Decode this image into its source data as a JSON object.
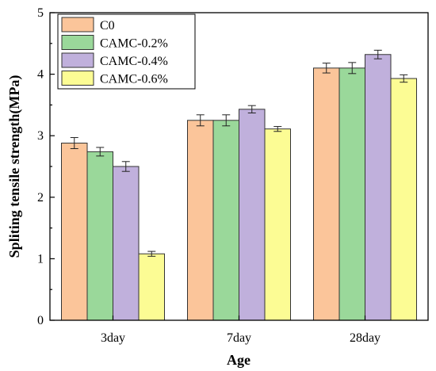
{
  "chart_data": {
    "type": "bar",
    "categories": [
      "3day",
      "7day",
      "28day"
    ],
    "series": [
      {
        "name": "C0",
        "values": [
          2.88,
          3.25,
          4.1
        ],
        "errors": [
          0.09,
          0.09,
          0.08
        ],
        "color": "#fbc59a"
      },
      {
        "name": "CAMC-0.2%",
        "values": [
          2.74,
          3.25,
          4.1
        ],
        "errors": [
          0.07,
          0.09,
          0.09
        ],
        "color": "#9ad89a"
      },
      {
        "name": "CAMC-0.4%",
        "values": [
          2.5,
          3.43,
          4.32
        ],
        "errors": [
          0.08,
          0.06,
          0.07
        ],
        "color": "#c0b0dc"
      },
      {
        "name": "CAMC-0.6%",
        "values": [
          1.08,
          3.11,
          3.93
        ],
        "errors": [
          0.04,
          0.04,
          0.06
        ],
        "color": "#fcfc94"
      }
    ],
    "title": "",
    "xlabel": "Age",
    "ylabel": "Spliting tensile strength(MPa)",
    "ylim": [
      0,
      5
    ],
    "yticks": [
      "0",
      "1",
      "2",
      "3",
      "4",
      "5"
    ],
    "grid": false,
    "legend_position": "top-left"
  }
}
